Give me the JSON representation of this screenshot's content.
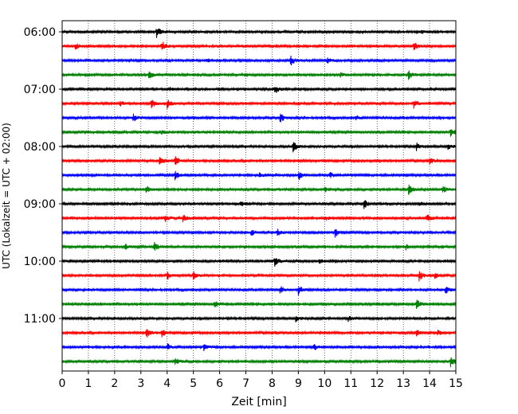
{
  "chart_data": {
    "type": "line",
    "title": "",
    "xlabel": "Zeit  [min]",
    "ylabel": "UTC (Lokalzeit = UTC + 02:00)",
    "xlim": [
      0,
      15
    ],
    "x_ticks": [
      "0",
      "1",
      "2",
      "3",
      "4",
      "5",
      "6",
      "7",
      "8",
      "9",
      "10",
      "11",
      "12",
      "13",
      "14",
      "15"
    ],
    "y_ticks": [
      "06:00",
      "07:00",
      "08:00",
      "09:00",
      "10:00",
      "11:00"
    ],
    "grid": "vertical dotted at each minute",
    "colors_cycle": [
      "#000000",
      "#ff0000",
      "#0000ff",
      "#008000"
    ],
    "traces": [
      {
        "start": "06:00",
        "events": [
          {
            "t": 3.6,
            "a": 1.0
          },
          {
            "t": 13.7,
            "a": 0.3
          }
        ]
      },
      {
        "start": "06:15",
        "events": [
          {
            "t": 0.5,
            "a": 0.6
          },
          {
            "t": 3.8,
            "a": 1.0
          },
          {
            "t": 13.4,
            "a": 0.8
          }
        ]
      },
      {
        "start": "06:30",
        "events": [
          {
            "t": 5.5,
            "a": 0.4
          },
          {
            "t": 8.7,
            "a": 1.0
          },
          {
            "t": 10.1,
            "a": 0.5
          }
        ]
      },
      {
        "start": "06:45",
        "events": [
          {
            "t": 3.3,
            "a": 0.9
          },
          {
            "t": 10.6,
            "a": 0.5
          },
          {
            "t": 13.2,
            "a": 1.0
          }
        ]
      },
      {
        "start": "07:00",
        "events": [
          {
            "t": 8.1,
            "a": 1.0
          },
          {
            "t": 4.1,
            "a": 0.3
          }
        ]
      },
      {
        "start": "07:15",
        "events": [
          {
            "t": 2.2,
            "a": 0.5
          },
          {
            "t": 3.4,
            "a": 0.9
          },
          {
            "t": 4.0,
            "a": 0.9
          },
          {
            "t": 13.4,
            "a": 0.8
          }
        ]
      },
      {
        "start": "07:30",
        "events": [
          {
            "t": 2.7,
            "a": 0.8
          },
          {
            "t": 8.3,
            "a": 1.0
          },
          {
            "t": 11.2,
            "a": 0.4
          }
        ]
      },
      {
        "start": "07:45",
        "events": [
          {
            "t": 3.8,
            "a": 0.5
          },
          {
            "t": 14.8,
            "a": 1.0
          }
        ]
      },
      {
        "start": "08:00",
        "events": [
          {
            "t": 8.8,
            "a": 1.0
          },
          {
            "t": 13.5,
            "a": 0.7
          },
          {
            "t": 14.7,
            "a": 0.6
          }
        ]
      },
      {
        "start": "08:15",
        "events": [
          {
            "t": 3.7,
            "a": 1.0
          },
          {
            "t": 4.3,
            "a": 0.9
          },
          {
            "t": 14.0,
            "a": 0.7
          }
        ]
      },
      {
        "start": "08:30",
        "events": [
          {
            "t": 4.3,
            "a": 0.9
          },
          {
            "t": 7.5,
            "a": 0.5
          },
          {
            "t": 9.0,
            "a": 1.0
          },
          {
            "t": 10.2,
            "a": 0.6
          }
        ]
      },
      {
        "start": "08:45",
        "events": [
          {
            "t": 3.2,
            "a": 0.7
          },
          {
            "t": 10.0,
            "a": 0.5
          },
          {
            "t": 13.2,
            "a": 1.0
          },
          {
            "t": 14.5,
            "a": 0.8
          }
        ]
      },
      {
        "start": "09:00",
        "events": [
          {
            "t": 6.8,
            "a": 0.6
          },
          {
            "t": 11.5,
            "a": 1.0
          },
          {
            "t": 13.6,
            "a": 0.4
          }
        ]
      },
      {
        "start": "09:15",
        "events": [
          {
            "t": 3.9,
            "a": 0.8
          },
          {
            "t": 4.6,
            "a": 0.7
          },
          {
            "t": 10.0,
            "a": 0.5
          },
          {
            "t": 13.9,
            "a": 0.7
          }
        ]
      },
      {
        "start": "09:30",
        "events": [
          {
            "t": 7.2,
            "a": 0.6
          },
          {
            "t": 8.2,
            "a": 0.7
          },
          {
            "t": 10.4,
            "a": 0.9
          }
        ]
      },
      {
        "start": "09:45",
        "events": [
          {
            "t": 2.4,
            "a": 0.6
          },
          {
            "t": 3.5,
            "a": 1.0
          },
          {
            "t": 13.1,
            "a": 0.5
          }
        ]
      },
      {
        "start": "10:00",
        "events": [
          {
            "t": 8.1,
            "a": 0.9
          },
          {
            "t": 9.8,
            "a": 0.4
          }
        ]
      },
      {
        "start": "10:15",
        "events": [
          {
            "t": 4.0,
            "a": 0.8
          },
          {
            "t": 5.0,
            "a": 0.8
          },
          {
            "t": 13.6,
            "a": 1.0
          },
          {
            "t": 14.2,
            "a": 0.5
          }
        ]
      },
      {
        "start": "10:30",
        "events": [
          {
            "t": 8.3,
            "a": 0.8
          },
          {
            "t": 9.0,
            "a": 1.0
          },
          {
            "t": 14.6,
            "a": 0.8
          }
        ]
      },
      {
        "start": "10:45",
        "events": [
          {
            "t": 5.8,
            "a": 0.7
          },
          {
            "t": 13.5,
            "a": 0.9
          }
        ]
      },
      {
        "start": "11:00",
        "events": [
          {
            "t": 8.9,
            "a": 0.6
          },
          {
            "t": 10.9,
            "a": 0.5
          }
        ]
      },
      {
        "start": "11:15",
        "events": [
          {
            "t": 3.2,
            "a": 1.0
          },
          {
            "t": 3.8,
            "a": 0.8
          },
          {
            "t": 13.5,
            "a": 0.6
          },
          {
            "t": 14.3,
            "a": 0.5
          }
        ]
      },
      {
        "start": "11:30",
        "events": [
          {
            "t": 4.0,
            "a": 0.7
          },
          {
            "t": 5.4,
            "a": 0.7
          },
          {
            "t": 9.6,
            "a": 0.6
          }
        ]
      },
      {
        "start": "11:45",
        "events": [
          {
            "t": 4.3,
            "a": 0.7
          },
          {
            "t": 14.8,
            "a": 1.0
          }
        ]
      }
    ]
  }
}
